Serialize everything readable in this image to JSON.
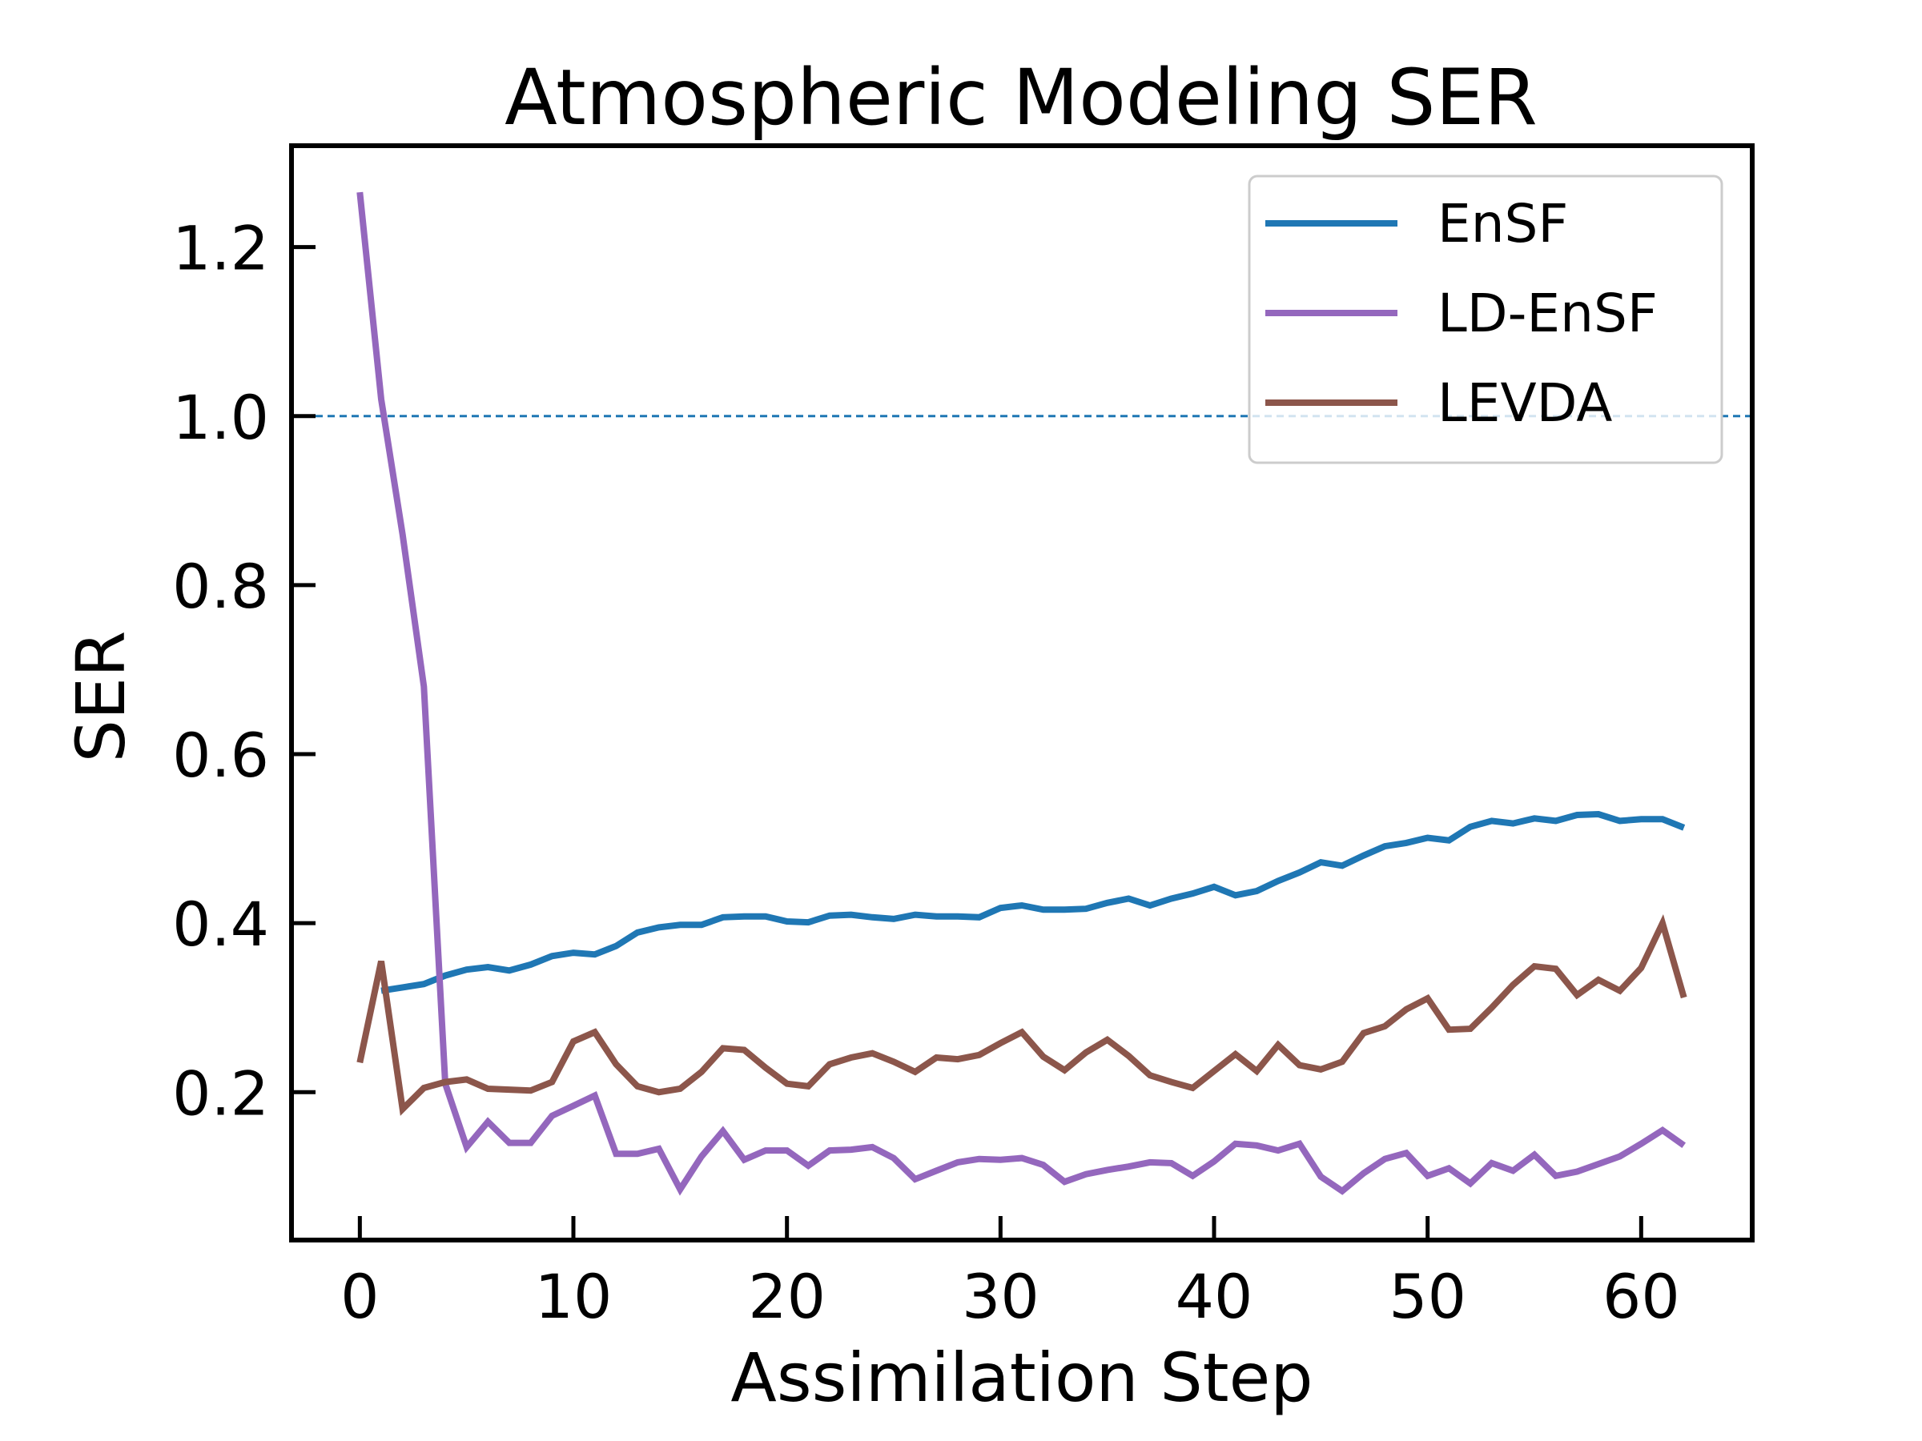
{
  "chart_data": {
    "type": "line",
    "title": "Atmospheric Modeling SER",
    "xlabel": "Assimilation Step",
    "ylabel": "SER",
    "xlim": [
      -3.2,
      65.2
    ],
    "ylim": [
      0.025,
      1.32
    ],
    "x_ticks": [
      0,
      10,
      20,
      30,
      40,
      50,
      60
    ],
    "x_tick_labels": [
      "0",
      "10",
      "20",
      "30",
      "40",
      "50",
      "60"
    ],
    "y_ticks": [
      0.2,
      0.4,
      0.6,
      0.8,
      1.0,
      1.2
    ],
    "y_tick_labels": [
      "0.2",
      "0.4",
      "0.6",
      "0.8",
      "1.0",
      "1.2"
    ],
    "grid": false,
    "legend_position": "top-right",
    "reference_line": {
      "y": 1.0,
      "style": "dashed",
      "color": "#1f77b4"
    },
    "series": [
      {
        "name": "EnSF",
        "color": "#1f77b4",
        "x": [
          0,
          1,
          2,
          3,
          4,
          5,
          6,
          7,
          8,
          9,
          10,
          11,
          12,
          13,
          14,
          15,
          16,
          17,
          18,
          19,
          20,
          21,
          22,
          23,
          24,
          25,
          26,
          27,
          28,
          29,
          30,
          31,
          32,
          33,
          34,
          35,
          36,
          37,
          38,
          39,
          40,
          41,
          42,
          43,
          44,
          45,
          46,
          47,
          48,
          49,
          50,
          51,
          52,
          53,
          54,
          55,
          56,
          57,
          58,
          59,
          60,
          61,
          62
        ],
        "values": [
          null,
          0.32,
          0.324,
          0.328,
          0.338,
          0.345,
          0.348,
          0.344,
          0.351,
          0.361,
          0.365,
          0.363,
          0.373,
          0.389,
          0.395,
          0.398,
          0.398,
          0.407,
          0.408,
          0.408,
          0.402,
          0.401,
          0.409,
          0.41,
          0.407,
          0.405,
          0.41,
          0.408,
          0.408,
          0.407,
          0.418,
          0.421,
          0.416,
          0.416,
          0.417,
          0.424,
          0.429,
          0.421,
          0.429,
          0.435,
          0.443,
          0.433,
          0.438,
          0.45,
          0.46,
          0.472,
          0.468,
          0.48,
          0.491,
          0.495,
          0.501,
          0.498,
          0.514,
          0.521,
          0.518,
          0.524,
          0.521,
          0.528,
          0.529,
          0.521,
          0.523,
          0.523,
          0.513
        ]
      },
      {
        "name": "LD-EnSF",
        "color": "#9467bd",
        "x": [
          0,
          1,
          2,
          3,
          4,
          5,
          6,
          7,
          8,
          9,
          10,
          11,
          12,
          13,
          14,
          15,
          16,
          17,
          18,
          19,
          20,
          21,
          22,
          23,
          24,
          25,
          26,
          27,
          28,
          29,
          30,
          31,
          32,
          33,
          34,
          35,
          36,
          37,
          38,
          39,
          40,
          41,
          42,
          43,
          44,
          45,
          46,
          47,
          48,
          49,
          50,
          51,
          52,
          53,
          54,
          55,
          56,
          57,
          58,
          59,
          60,
          61,
          62
        ],
        "values": [
          1.265,
          1.02,
          0.86,
          0.68,
          0.21,
          0.135,
          0.165,
          0.14,
          0.14,
          0.172,
          0.184,
          0.196,
          0.127,
          0.127,
          0.133,
          0.085,
          0.124,
          0.154,
          0.12,
          0.131,
          0.131,
          0.113,
          0.131,
          0.132,
          0.135,
          0.122,
          0.097,
          0.107,
          0.117,
          0.121,
          0.12,
          0.122,
          0.114,
          0.094,
          0.103,
          0.108,
          0.112,
          0.117,
          0.116,
          0.101,
          0.118,
          0.139,
          0.137,
          0.131,
          0.139,
          0.1,
          0.083,
          0.104,
          0.121,
          0.128,
          0.101,
          0.11,
          0.092,
          0.116,
          0.107,
          0.126,
          0.101,
          0.106,
          0.115,
          0.124,
          0.139,
          0.155,
          0.137
        ]
      },
      {
        "name": "LEVDA",
        "color": "#8c564b",
        "x": [
          0,
          1,
          2,
          3,
          4,
          5,
          6,
          7,
          8,
          9,
          10,
          11,
          12,
          13,
          14,
          15,
          16,
          17,
          18,
          19,
          20,
          21,
          22,
          23,
          24,
          25,
          26,
          27,
          28,
          29,
          30,
          31,
          32,
          33,
          34,
          35,
          36,
          37,
          38,
          39,
          40,
          41,
          42,
          43,
          44,
          45,
          46,
          47,
          48,
          49,
          50,
          51,
          52,
          53,
          54,
          55,
          56,
          57,
          58,
          59,
          60,
          61,
          62
        ],
        "values": [
          0.235,
          0.355,
          0.18,
          0.205,
          0.212,
          0.215,
          0.204,
          0.203,
          0.202,
          0.212,
          0.26,
          0.271,
          0.233,
          0.207,
          0.2,
          0.204,
          0.224,
          0.252,
          0.25,
          0.229,
          0.21,
          0.207,
          0.233,
          0.241,
          0.246,
          0.236,
          0.224,
          0.241,
          0.239,
          0.244,
          0.258,
          0.271,
          0.242,
          0.226,
          0.247,
          0.262,
          0.243,
          0.22,
          0.212,
          0.205,
          0.225,
          0.245,
          0.225,
          0.256,
          0.232,
          0.227,
          0.236,
          0.27,
          0.278,
          0.298,
          0.311,
          0.274,
          0.275,
          0.3,
          0.327,
          0.349,
          0.346,
          0.315,
          0.333,
          0.32,
          0.347,
          0.4,
          0.312
        ]
      }
    ]
  }
}
